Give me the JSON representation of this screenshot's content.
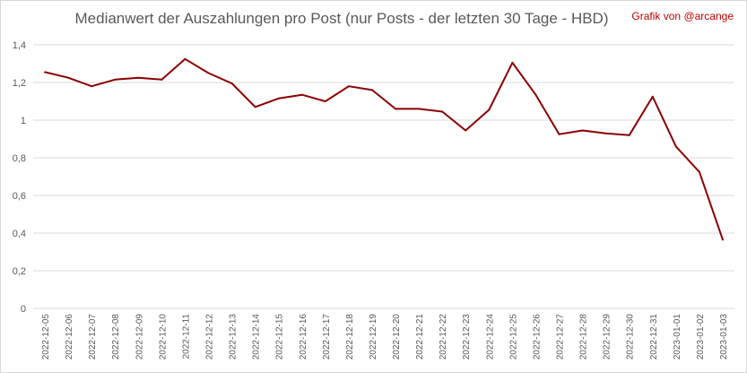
{
  "chart_data": {
    "type": "line",
    "title": "Medianwert der Auszahlungen pro Post (nur Posts - der letzten 30 Tage - HBD)",
    "credit": "Grafik von @arcange",
    "x": [
      "2022-12-05",
      "2022-12-06",
      "2022-12-07",
      "2022-12-08",
      "2022-12-09",
      "2022-12-10",
      "2022-12-11",
      "2022-12-12",
      "2022-12-13",
      "2022-12-14",
      "2022-12-15",
      "2022-12-16",
      "2022-12-17",
      "2022-12-18",
      "2022-12-19",
      "2022-12-20",
      "2022-12-21",
      "2022-12-22",
      "2022-12-23",
      "2022-12-24",
      "2022-12-25",
      "2022-12-26",
      "2022-12-27",
      "2022-12-28",
      "2022-12-29",
      "2022-12-30",
      "2022-12-31",
      "2023-01-01",
      "2023-01-02",
      "2023-01-03"
    ],
    "values": [
      1.255,
      1.225,
      1.18,
      1.215,
      1.225,
      1.215,
      1.325,
      1.25,
      1.195,
      1.07,
      1.115,
      1.135,
      1.1,
      1.18,
      1.16,
      1.06,
      1.06,
      1.045,
      0.945,
      1.055,
      1.305,
      1.135,
      0.925,
      0.945,
      0.93,
      0.92,
      1.125,
      0.86,
      0.725,
      0.365
    ],
    "y_ticks": [
      "0",
      "0,2",
      "0,4",
      "0,6",
      "0,8",
      "1",
      "1,2",
      "1,4"
    ],
    "ylim": [
      0,
      1.4
    ],
    "xlabel": "",
    "ylabel": "",
    "grid": true,
    "line_color": "#8b0000",
    "grid_color": "#d9d9d9"
  }
}
